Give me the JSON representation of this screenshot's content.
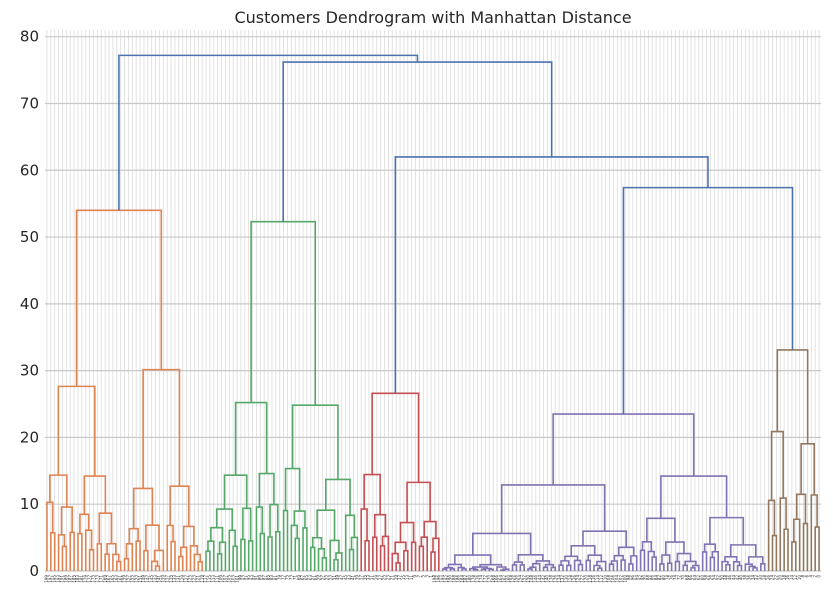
{
  "chart_data": {
    "type": "dendrogram",
    "title": "Customers Dendrogram with Manhattan Distance",
    "xlabel": "",
    "ylabel": "",
    "ylim": [
      0,
      81
    ],
    "y_ticks": [
      0,
      10,
      20,
      30,
      40,
      50,
      60,
      70,
      80
    ],
    "grid": true,
    "leaf_count": 200,
    "leaf_labels": [
      "199",
      "197",
      "195",
      "193",
      "191",
      "189",
      "187",
      "185",
      "183",
      "181",
      "179",
      "177",
      "175",
      "173",
      "171",
      "169",
      "167",
      "165",
      "163",
      "161",
      "159",
      "157",
      "155",
      "153",
      "151",
      "149",
      "147",
      "145",
      "143",
      "141",
      "139",
      "137",
      "135",
      "133",
      "131",
      "129",
      "127",
      "125",
      "123",
      "121",
      "119",
      "117",
      "115",
      "113",
      "111",
      "109",
      "107",
      "105",
      "103",
      "101",
      "99",
      "97",
      "95",
      "93",
      "91",
      "89",
      "87",
      "85",
      "83",
      "81",
      "79",
      "77",
      "75",
      "73",
      "71",
      "69",
      "67",
      "65",
      "63",
      "61",
      "59",
      "57",
      "55",
      "53",
      "51",
      "49",
      "47",
      "45",
      "43",
      "41",
      "39",
      "37",
      "35",
      "33",
      "31",
      "29",
      "27",
      "25",
      "23",
      "21",
      "19",
      "17",
      "15",
      "13",
      "11",
      "9",
      "7",
      "5",
      "3",
      "1",
      "198",
      "196",
      "194",
      "192",
      "190",
      "188",
      "186",
      "184",
      "182",
      "180",
      "178",
      "176",
      "174",
      "172",
      "170",
      "168",
      "166",
      "164",
      "162",
      "160",
      "158",
      "156",
      "154",
      "152",
      "150",
      "148",
      "146",
      "144",
      "142",
      "140",
      "138",
      "136",
      "134",
      "132",
      "130",
      "128",
      "126",
      "124",
      "122",
      "120",
      "118",
      "116",
      "114",
      "112",
      "110",
      "108",
      "106",
      "104",
      "102",
      "100",
      "98",
      "96",
      "94",
      "92",
      "90",
      "88",
      "86",
      "84",
      "82",
      "80",
      "78",
      "76",
      "74",
      "72",
      "70",
      "68",
      "66",
      "64",
      "62",
      "60",
      "58",
      "56",
      "54",
      "52",
      "50",
      "48",
      "46",
      "44",
      "42",
      "40",
      "38",
      "36",
      "34",
      "32",
      "30",
      "28",
      "26",
      "24",
      "22",
      "20",
      "18",
      "16",
      "14",
      "12",
      "10",
      "8",
      "6",
      "4",
      "2",
      "0"
    ],
    "clusters": [
      {
        "color": "#dd8452",
        "leaf_range": [
          0,
          41
        ],
        "merge_height": 54
      },
      {
        "color": "#55a868",
        "leaf_range": [
          41,
          81
        ],
        "merge_height": 52.3
      },
      {
        "color": "#c44e52",
        "leaf_range": [
          81,
          102
        ],
        "merge_height": 26.6
      },
      {
        "color": "#8172b3",
        "leaf_range": [
          102,
          186
        ],
        "merge_height": 23.5
      },
      {
        "color": "#937860",
        "leaf_range": [
          186,
          200
        ],
        "merge_height": 33.1
      }
    ],
    "cluster_links": [
      {
        "color": "#4c72b0",
        "left": "brown",
        "right": "purple",
        "height": 57.4
      },
      {
        "color": "#4c72b0",
        "left": "red",
        "right": "purple-brown",
        "height": 62
      },
      {
        "color": "#4c72b0",
        "left": "green",
        "right": "red-purple-brown",
        "height": 76.2
      },
      {
        "color": "#4c72b0",
        "left": "orange",
        "right": "rest",
        "height": 77.2
      }
    ]
  }
}
